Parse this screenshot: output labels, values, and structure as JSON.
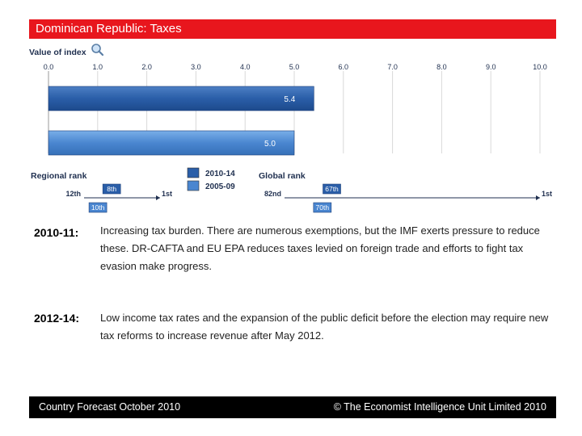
{
  "header": {
    "title": "Dominican Republic: Taxes"
  },
  "chart_data": {
    "type": "bar",
    "orientation": "horizontal",
    "axis_title": "Value of index",
    "xlim": [
      0,
      10
    ],
    "ticks": [
      "0.0",
      "1.0",
      "2.0",
      "3.0",
      "4.0",
      "5.0",
      "6.0",
      "7.0",
      "8.0",
      "9.0",
      "10.0"
    ],
    "series": [
      {
        "name": "2010-14",
        "value": 5.4,
        "label": "5.4",
        "color": "#2a5ea8"
      },
      {
        "name": "2005-09",
        "value": 5.0,
        "label": "5.0",
        "color": "#4a86d0"
      }
    ],
    "legend": [
      "2010-14",
      "2005-09"
    ],
    "regional_rank": {
      "title": "Regional rank",
      "scale_start": "12th",
      "scale_end": "1st",
      "scale_min": 12,
      "scale_max": 1,
      "rank_2010_14": 8,
      "rank_2010_14_label": "8th",
      "rank_2005_09": 10,
      "rank_2005_09_label": "10th"
    },
    "global_rank": {
      "title": "Global rank",
      "scale_start": "82nd",
      "scale_end": "1st",
      "scale_min": 82,
      "scale_max": 1,
      "rank_2010_14": 67,
      "rank_2010_14_label": "67th",
      "rank_2005_09": 70,
      "rank_2005_09_label": "70th"
    }
  },
  "notes": [
    {
      "period": "2010-11:",
      "text": "Increasing tax burden. There are numerous exemptions, but the IMF exerts pressure to reduce these. DR-CAFTA and EU EPA reduces taxes levied on foreign trade and efforts to fight tax evasion make progress."
    },
    {
      "period": "2012-14:",
      "text": "Low income tax rates and the expansion of the public deficit before the election may require new tax reforms to increase revenue after May 2012."
    }
  ],
  "footer": {
    "left": "Country Forecast October 2010",
    "right": "© The Economist Intelligence Unit Limited 2010"
  }
}
